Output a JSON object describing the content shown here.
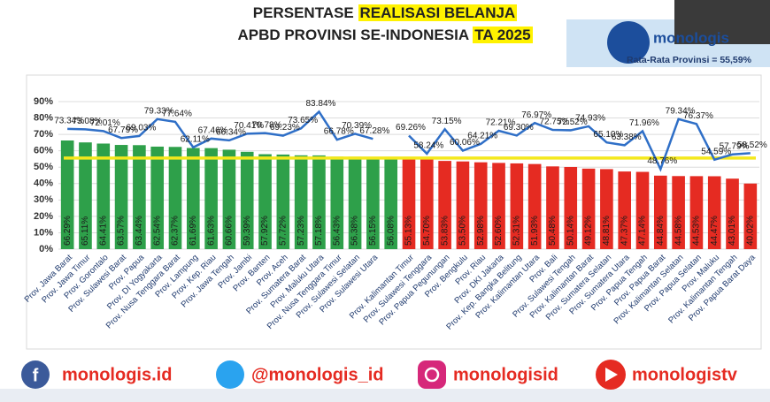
{
  "header": {
    "logo": "monologis"
  },
  "chart_data": {
    "type": "bar",
    "title": [
      "PERSENTASE",
      "REALISASI BELANJA",
      "APBD PROVINSI SE-INDONESIA",
      "TA 2025"
    ],
    "categories": [
      "Prov. Jawa Barat",
      "Prov. Jawa Timur",
      "Prov. Gorontalo",
      "Prov. Sulawesi Barat",
      "Prov. Papua",
      "Prov. DI Yogyakarta",
      "Prov. Nusa Tenggara Barat",
      "Prov. Lampung",
      "Prov. Kep. Riau",
      "Prov. Jawa Tengah",
      "Prov. Jambi",
      "Prov. Banten",
      "Prov. Aceh",
      "Prov. Sumatera Barat",
      "Prov. Maluku Utara",
      "Prov. Nusa Tenggara Timur",
      "Prov. Sulawesi Selatan",
      "Prov. Sulawesi Utara",
      null,
      "Prov. Kalimantan Timur",
      "Prov. Sulawesi Tenggara",
      "Prov. Papua Pegunungan",
      "Prov. Bengkulu",
      "Prov. Riau",
      "Prov. DKI Jakarta",
      "Prov. Kep. Bangka Belitung",
      "Prov. Kalimantan Utara",
      "Prov. Bali",
      "Prov. Sulawesi Tengah",
      "Prov. Kalimantan Barat",
      "Prov. Sumatera Selatan",
      "Prov. Sumatera Utara",
      "Prov. Papua Tengah",
      "Prov. Papua Barat",
      "Prov. Kalimantan Selatan",
      "Prov. Papua Selatan",
      "Prov. Maluku",
      "Prov. Kalimantan Tengah",
      "Prov. Papua Barat Daya"
    ],
    "series": [
      {
        "type": "bar",
        "colors": [
          "#2ea04a",
          "#e52b22"
        ],
        "split_at": 19,
        "values": [
          66.29,
          65.11,
          64.41,
          63.57,
          63.44,
          62.54,
          62.37,
          61.69,
          61.63,
          60.66,
          59.39,
          57.92,
          57.72,
          57.23,
          57.18,
          56.43,
          56.38,
          56.15,
          56.08,
          55.13,
          54.7,
          53.83,
          53.5,
          52.98,
          52.6,
          52.31,
          51.93,
          50.48,
          50.14,
          49.12,
          48.81,
          47.37,
          47.14,
          44.84,
          44.58,
          44.53,
          44.47,
          43.01,
          40.02
        ],
        "value_labels": [
          "66.29%",
          "65.11%",
          "64.41%",
          "63.57%",
          "63.44%",
          "62.54%",
          "62.37%",
          "61.69%",
          "61.63%",
          "60.66%",
          "59.39%",
          "57.92%",
          "57.72%",
          "57.23%",
          "57.18%",
          "56.43%",
          "56.38%",
          "56.15%",
          "56.08%",
          "55.13%",
          "54.70%",
          "53.83%",
          "53.50%",
          "52.98%",
          "52.60%",
          "52.31%",
          "51.93%",
          "50.48%",
          "50.14%",
          "49.12%",
          "48.81%",
          "47.37%",
          "47.14%",
          "44.84%",
          "44.58%",
          "44.53%",
          "44.47%",
          "43.01%",
          "40.02%"
        ]
      },
      {
        "type": "line",
        "color": "#2f6fc7",
        "values": [
          73.34,
          73.08,
          72.01,
          67.79,
          69.03,
          79.33,
          77.64,
          62.11,
          67.46,
          66.34,
          70.41,
          70.78,
          69.23,
          73.65,
          83.84,
          66.78,
          70.39,
          67.28,
          null,
          69.26,
          58.24,
          73.15,
          60.06,
          64.21,
          72.21,
          69.3,
          76.97,
          72.75,
          72.52,
          74.93,
          65.1,
          63.38,
          71.96,
          48.76,
          79.34,
          76.37,
          54.59,
          57.79,
          58.52
        ],
        "value_labels": [
          "73.34%",
          "73.08%",
          "72.01%",
          "67.79%",
          "69.03%",
          "79.33%",
          "77.64%",
          "62.11%",
          "67.46%",
          "66.34%",
          "70.41%",
          "70.78%",
          "69.23%",
          "73.65%",
          "83.84%",
          "66.78%",
          "70.39%",
          "67.28%",
          null,
          "69.26%",
          "58.24%",
          "73.15%",
          "60.06%",
          "64.21%",
          "72.21%",
          "69.30%",
          "76.97%",
          "72.75%",
          "72.52%",
          "74.93%",
          "65.10%",
          "63.38%",
          "71.96%",
          "48.76%",
          "79.34%",
          "76.37%",
          "54.59%",
          "57.79%",
          "58.52%"
        ]
      }
    ],
    "reference_line": {
      "value": 55.59,
      "label": "Rata-Rata Provinsi = 55,59%",
      "color": "#f4e81c"
    },
    "ylim": [
      0,
      90
    ],
    "yticks": [
      {
        "value": 0,
        "label": "0%"
      },
      {
        "value": 10,
        "label": "10%"
      },
      {
        "value": 20,
        "label": "20%"
      },
      {
        "value": 30,
        "label": "30%"
      },
      {
        "value": 40,
        "label": "40%"
      },
      {
        "value": 50,
        "label": "50%"
      },
      {
        "value": 60,
        "label": "60%"
      },
      {
        "value": 70,
        "label": "70%"
      },
      {
        "value": 80,
        "label": "80%"
      },
      {
        "value": 90,
        "label": "90%"
      }
    ],
    "grid": true
  },
  "footer": {
    "socials": [
      "monologis.id",
      "@monologis_id",
      "monologisid",
      "monologistv"
    ]
  }
}
